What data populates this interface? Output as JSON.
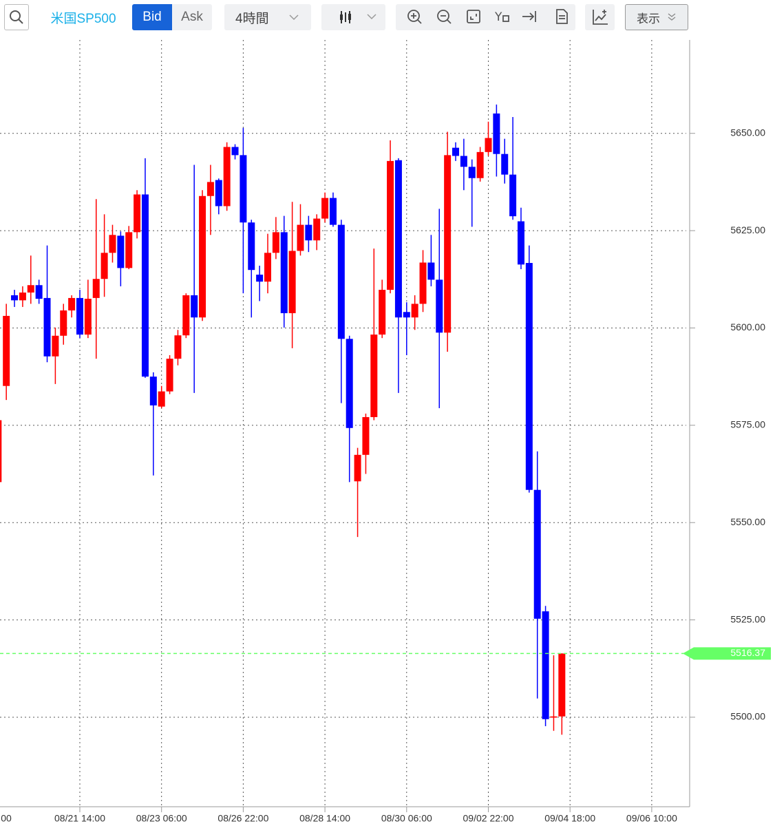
{
  "toolbar": {
    "symbol": "米国SP500",
    "bid": "Bid",
    "ask": "Ask",
    "interval": "4時間",
    "display": "表示"
  },
  "chart_data": {
    "type": "candlestick",
    "categories": [
      "00",
      null,
      null,
      null,
      null,
      null,
      null,
      null,
      null,
      null,
      "08/21 14:00",
      null,
      null,
      null,
      null,
      null,
      null,
      null,
      null,
      null,
      "08/23 06:00",
      null,
      null,
      null,
      null,
      null,
      null,
      null,
      null,
      null,
      "08/26 22:00",
      null,
      null,
      null,
      null,
      null,
      null,
      null,
      null,
      null,
      "08/28 14:00",
      null,
      null,
      null,
      null,
      null,
      null,
      null,
      null,
      null,
      "08/30 06:00",
      null,
      null,
      null,
      null,
      null,
      null,
      null,
      null,
      null,
      "09/02 22:00",
      null,
      null,
      null,
      null,
      null,
      null,
      null,
      null,
      null,
      "09/04 18:00",
      null,
      null,
      null,
      null,
      null,
      null,
      null,
      null,
      null,
      "09/06 10:00",
      null,
      null,
      null,
      null
    ],
    "open": [
      5560.4,
      5585.1,
      5608.4,
      5607.1,
      5609.1,
      5611.0,
      5607.7,
      5592.7,
      5598.0,
      5604.5,
      5607.7,
      5598.3,
      5607.7,
      5612.6,
      5619.3,
      5623.7,
      5615.4,
      5624.6,
      5634.3,
      5587.5,
      5579.8,
      5583.7,
      5592.1,
      5598.1,
      5608.4,
      5602.7,
      5633.9,
      5638.0,
      5631.3,
      5646.5,
      5644.4,
      5627.1,
      5613.7,
      5611.9,
      5619.3,
      5624.6,
      5603.8,
      5619.8,
      5626.5,
      5622.5,
      5628.1,
      5633.4,
      5626.5,
      5597.2,
      5560.6,
      5567.4,
      5577.1,
      5598.3,
      5609.8,
      5643.1,
      5604.1,
      5602.7,
      5606.2,
      5616.8,
      5612.4,
      5598.8,
      5646.3,
      5644.2,
      5641.4,
      5638.5,
      5645.2,
      5655.1,
      5644.7,
      5639.4,
      5627.4,
      5616.7,
      5558.4,
      5527.2,
      5499.9,
      5500.2,
      null,
      null,
      null,
      null,
      null,
      null,
      null,
      null,
      null,
      null,
      null,
      null,
      null,
      null,
      null
    ],
    "high": [
      5578.0,
      5606.2,
      5609.8,
      5610.7,
      5618.6,
      5612.4,
      5621.2,
      5600.1,
      5606.2,
      5608.4,
      5609.8,
      5612.4,
      5633.1,
      5629.2,
      5626.5,
      5624.8,
      5626.2,
      5635.4,
      5643.6,
      5588.6,
      5585.1,
      5593.0,
      5599.5,
      5608.9,
      5641.9,
      5635.4,
      5641.9,
      5638.4,
      5647.7,
      5647.2,
      5651.4,
      5627.8,
      5616.0,
      5624.2,
      5628.5,
      5628.8,
      5632.4,
      5631.8,
      5628.8,
      5629.2,
      5634.8,
      5634.8,
      5627.8,
      5598.0,
      5569.2,
      5578.0,
      5620.4,
      5612.4,
      5648.2,
      5643.6,
      5606.6,
      5608.4,
      5620.0,
      5623.9,
      5630.6,
      5650.4,
      5647.7,
      5648.6,
      5643.3,
      5646.5,
      5653.0,
      5657.4,
      5648.6,
      5654.2,
      5630.9,
      5621.2,
      5568.3,
      5528.6,
      5515.9,
      5516.4,
      null,
      null,
      null,
      null,
      null,
      null,
      null,
      null,
      null,
      null,
      null,
      null,
      null,
      null,
      null
    ],
    "low": [
      5559.5,
      5581.5,
      5605.4,
      5605.4,
      5606.2,
      5606.2,
      5591.2,
      5585.6,
      5595.7,
      5602.7,
      5597.4,
      5597.4,
      5592.1,
      5608.0,
      5616.8,
      5610.7,
      5615.1,
      5623.0,
      5587.2,
      5562.1,
      5579.4,
      5583.0,
      5590.4,
      5597.4,
      5583.3,
      5601.8,
      5623.9,
      5629.2,
      5630.1,
      5643.3,
      5608.9,
      5602.7,
      5606.9,
      5608.9,
      5617.7,
      5600.1,
      5594.8,
      5618.6,
      5619.5,
      5620.0,
      5627.1,
      5626.0,
      5580.7,
      5560.4,
      5546.3,
      5562.5,
      5576.3,
      5597.4,
      5608.9,
      5583.3,
      5593.0,
      5599.5,
      5604.1,
      5610.7,
      5579.4,
      5593.9,
      5642.9,
      5635.4,
      5626.0,
      5637.6,
      5644.2,
      5638.9,
      5637.1,
      5627.8,
      5615.1,
      5557.7,
      5504.8,
      5497.7,
      5496.5,
      5495.5,
      null,
      null,
      null,
      null,
      null,
      null,
      null,
      null,
      null,
      null,
      null,
      null,
      null,
      null,
      null
    ],
    "close": [
      5576.3,
      5603.1,
      5607.1,
      5609.1,
      5611.0,
      5607.5,
      5592.7,
      5598.0,
      5604.5,
      5607.7,
      5598.3,
      5607.5,
      5612.6,
      5619.3,
      5623.9,
      5615.4,
      5624.6,
      5634.3,
      5587.5,
      5580.1,
      5583.7,
      5592.1,
      5598.1,
      5608.4,
      5602.7,
      5633.9,
      5637.5,
      5631.3,
      5646.5,
      5644.4,
      5627.1,
      5614.9,
      5611.9,
      5619.3,
      5624.6,
      5603.8,
      5619.8,
      5626.5,
      5622.5,
      5628.1,
      5633.4,
      5626.5,
      5597.2,
      5574.3,
      5567.4,
      5577.1,
      5598.3,
      5609.8,
      5642.9,
      5602.7,
      5602.7,
      5606.2,
      5616.8,
      5612.4,
      5598.8,
      5644.4,
      5644.2,
      5641.4,
      5638.5,
      5645.2,
      5648.8,
      5644.7,
      5639.4,
      5628.7,
      5616.3,
      5558.4,
      5525.3,
      5499.5,
      5500.2,
      5516.37,
      null,
      null,
      null,
      null,
      null,
      null,
      null,
      null,
      null,
      null,
      null,
      null,
      null,
      null,
      null
    ],
    "up_color": "#ff0000",
    "down_color": "#0000ff",
    "current_price": 5516.37,
    "current_price_color": "#66ff66",
    "ylim": [
      5477,
      5674
    ],
    "yticks": [
      {
        "value": 5500,
        "label": "5500.00"
      },
      {
        "value": 5525,
        "label": "5525.00"
      },
      {
        "value": 5550,
        "label": "5550.00"
      },
      {
        "value": 5575,
        "label": "5575.00"
      },
      {
        "value": 5600,
        "label": "5600.00"
      },
      {
        "value": 5625,
        "label": "5625.00"
      },
      {
        "value": 5650,
        "label": "5650.00"
      }
    ],
    "grid": true
  }
}
